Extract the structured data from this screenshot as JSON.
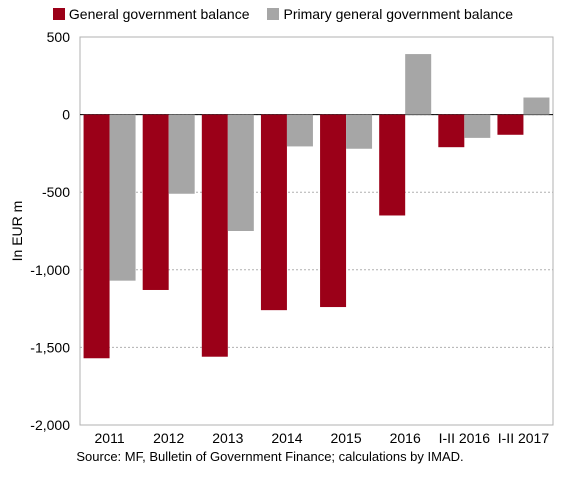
{
  "colors": {
    "general": "#9b0018",
    "primary": "#a6a6a6",
    "grid": "#b0b0b0"
  },
  "source_note": "Source: MF, Bulletin of Government Finance; calculations by IMAD.",
  "chart_data": {
    "type": "bar",
    "title": "",
    "xlabel": "",
    "ylabel": "In EUR m",
    "ylim": [
      -2000,
      500
    ],
    "yticks": [
      500,
      0,
      -500,
      -1000,
      -1500,
      -2000
    ],
    "ytick_labels": [
      "500",
      "0",
      "-500",
      "-1,000",
      "-1,500",
      "-2,000"
    ],
    "grid": true,
    "legend": "top",
    "categories": [
      "2011",
      "2012",
      "2013",
      "2014",
      "2015",
      "2016",
      "I-II 2016",
      "I-II 2017"
    ],
    "series": [
      {
        "name": "General government balance",
        "color": "#9b0018",
        "values": [
          -1570,
          -1130,
          -1560,
          -1260,
          -1240,
          -650,
          -210,
          -130
        ]
      },
      {
        "name": "Primary general government balance",
        "color": "#a6a6a6",
        "values": [
          -1070,
          -510,
          -750,
          -205,
          -220,
          390,
          -150,
          110
        ]
      }
    ]
  }
}
